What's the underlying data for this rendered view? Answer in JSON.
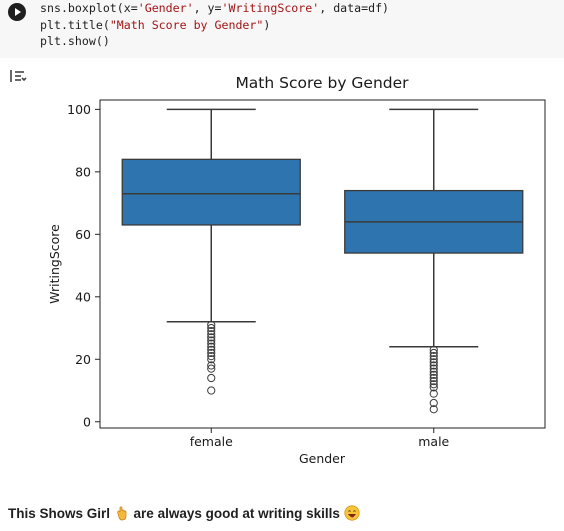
{
  "code_cell": {
    "lines": [
      [
        {
          "t": "sns.boxplot(x=",
          "c": "plain"
        },
        {
          "t": "'Gender'",
          "c": "str"
        },
        {
          "t": ", y=",
          "c": "plain"
        },
        {
          "t": "'WritingScore'",
          "c": "str"
        },
        {
          "t": ", data=df)",
          "c": "plain"
        }
      ],
      [
        {
          "t": "plt.title(",
          "c": "plain"
        },
        {
          "t": "\"Math Score by Gender\"",
          "c": "str"
        },
        {
          "t": ")",
          "c": "plain"
        }
      ],
      [
        {
          "t": "plt.show()",
          "c": "plain"
        }
      ]
    ]
  },
  "icons": {
    "run": "play-icon",
    "output": "output-toggle-icon",
    "emoji1": "waving-hand-emoji",
    "emoji2": "grinning-face-emoji"
  },
  "colors": {
    "box": "#2e75b0",
    "line": "#3a3a3a",
    "axis": "#222222"
  },
  "chart_data": {
    "type": "box",
    "title": "Math Score by Gender",
    "xlabel": "Gender",
    "ylabel": "WritingScore",
    "categories": [
      "female",
      "male"
    ],
    "ylim": [
      -2,
      103
    ],
    "yticks": [
      0,
      20,
      40,
      60,
      80,
      100
    ],
    "boxes": [
      {
        "name": "female",
        "whisker_low": 32,
        "q1": 63,
        "median": 73,
        "q3": 84,
        "whisker_high": 100,
        "outliers": [
          31,
          30,
          29,
          28,
          27,
          26,
          25,
          24,
          23,
          22,
          21,
          20,
          18,
          17,
          14,
          10
        ]
      },
      {
        "name": "male",
        "whisker_low": 24,
        "q1": 54,
        "median": 64,
        "q3": 74,
        "whisker_high": 100,
        "outliers": [
          23,
          22,
          21,
          20,
          19,
          18,
          17,
          16,
          15,
          14,
          13,
          12,
          11,
          9,
          6,
          4
        ]
      }
    ]
  },
  "markdown": {
    "part1": "This Shows Girl",
    "part2": "are always good at writing skills"
  }
}
